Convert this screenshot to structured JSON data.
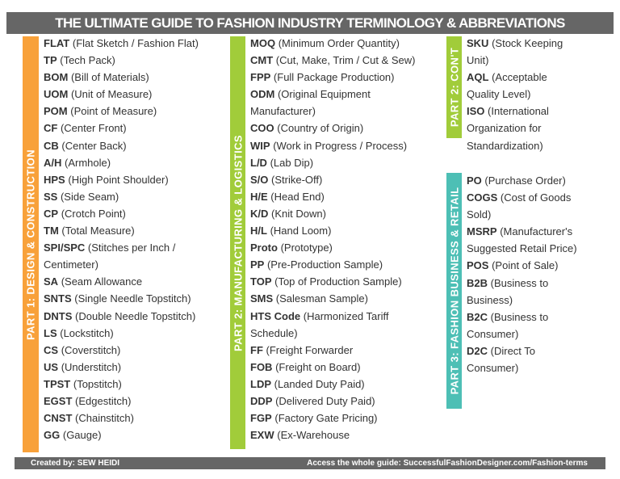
{
  "title": "THE ULTIMATE GUIDE TO FASHION INDUSTRY TERMINOLOGY & ABBREVIATIONS",
  "colors": {
    "part1": "#F8A13A",
    "part2": "#A1CC3A",
    "part3": "#4DBFB5",
    "banner": "#666666"
  },
  "sections": {
    "part1": "PART 1: DESIGN & CONSTRUCTION",
    "part2": "PART 2: MANUFACTURING & LOGISTICS",
    "part2cont": "PART 2: CON'T",
    "part3": "PART 3: FASHION BUSINESS & RETAIL"
  },
  "col1": [
    [
      "FLAT",
      "(Flat Sketch / Fashion Flat)"
    ],
    [
      "TP",
      "(Tech Pack)"
    ],
    [
      "BOM",
      "(Bill of Materials)"
    ],
    [
      "UOM",
      "(Unit of Measure)"
    ],
    [
      "POM",
      "(Point of Measure)"
    ],
    [
      "CF",
      "(Center Front)"
    ],
    [
      "CB",
      "(Center Back)"
    ],
    [
      "A/H",
      "(Armhole)"
    ],
    [
      "HPS",
      "(High Point Shoulder)"
    ],
    [
      "SS",
      "(Side Seam)"
    ],
    [
      "CP",
      "(Crotch Point)"
    ],
    [
      "TM",
      "(Total Measure)"
    ],
    [
      "SPI/SPC",
      "(Stitches per Inch /"
    ],
    [
      "",
      "Centimeter)"
    ],
    [
      "SA",
      "(Seam Allowance"
    ],
    [
      "SNTS",
      "(Single Needle Topstitch)"
    ],
    [
      "DNTS",
      "(Double Needle Topstitch)"
    ],
    [
      "LS",
      "(Lockstitch)"
    ],
    [
      "CS",
      "(Coverstitch)"
    ],
    [
      "US",
      "(Understitch)"
    ],
    [
      "TPST",
      "(Topstitch)"
    ],
    [
      "EGST",
      "(Edgestitch)"
    ],
    [
      "CNST",
      "(Chainstitch)"
    ],
    [
      "GG",
      "(Gauge)"
    ]
  ],
  "col2": [
    [
      "MOQ",
      "(Minimum Order Quantity)"
    ],
    [
      "CMT",
      "(Cut, Make, Trim / Cut & Sew)"
    ],
    [
      "FPP",
      "(Full Package Production)"
    ],
    [
      "ODM",
      "(Original Equipment"
    ],
    [
      "",
      "Manufacturer)"
    ],
    [
      "COO",
      "(Country of Origin)"
    ],
    [
      "WIP",
      "(Work in Progress / Process)"
    ],
    [
      "L/D",
      "(Lab Dip)"
    ],
    [
      "S/O",
      "(Strike-Off)"
    ],
    [
      "H/E",
      "(Head End)"
    ],
    [
      "K/D",
      "(Knit Down)"
    ],
    [
      "H/L",
      "(Hand Loom)"
    ],
    [
      "Proto",
      "(Prototype)"
    ],
    [
      "PP",
      "(Pre-Production Sample)"
    ],
    [
      "TOP",
      "(Top of Production Sample)"
    ],
    [
      "SMS",
      "(Salesman Sample)"
    ],
    [
      "HTS Code",
      "(Harmonized Tariff"
    ],
    [
      "",
      "Schedule)"
    ],
    [
      "FF",
      "(Freight Forwarder"
    ],
    [
      "FOB",
      "(Freight on Board)"
    ],
    [
      "LDP",
      "(Landed Duty Paid)"
    ],
    [
      "DDP",
      "(Delivered Duty Paid)"
    ],
    [
      "FGP",
      "(Factory Gate Pricing)"
    ],
    [
      "EXW",
      "(Ex-Warehouse"
    ]
  ],
  "col3a": [
    [
      "SKU",
      "(Stock Keeping"
    ],
    [
      "",
      "Unit)"
    ],
    [
      "AQL",
      "(Acceptable"
    ],
    [
      "",
      "Quality Level)"
    ],
    [
      "ISO",
      "(International"
    ],
    [
      "",
      "Organization for"
    ],
    [
      "",
      "Standardization)"
    ]
  ],
  "col3b": [
    [
      "PO",
      "(Purchase Order)"
    ],
    [
      "COGS",
      "(Cost of Goods"
    ],
    [
      "",
      "Sold)"
    ],
    [
      "MSRP",
      "(Manufacturer's"
    ],
    [
      "",
      "Suggested Retail Price)"
    ],
    [
      "POS",
      "(Point of Sale)"
    ],
    [
      "B2B",
      "(Business to"
    ],
    [
      "",
      "Business)"
    ],
    [
      "B2C",
      "(Business to"
    ],
    [
      "",
      "Consumer)"
    ],
    [
      "D2C",
      "(Direct To"
    ],
    [
      "",
      "Consumer)"
    ]
  ],
  "footer": {
    "left": "Created by: SEW HEIDI",
    "right": "Access the whole guide: SuccessfulFashionDesigner.com/Fashion-terms"
  }
}
